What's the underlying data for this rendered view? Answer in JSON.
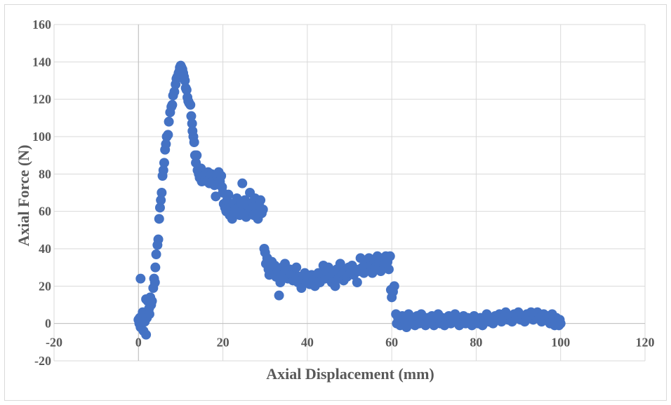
{
  "chart_data": {
    "type": "scatter",
    "xlabel": "Axial Displacement (mm)",
    "ylabel": "Axial Force (N)",
    "xlim": [
      -20,
      120
    ],
    "ylim": [
      -20,
      160
    ],
    "x_ticks": [
      -20,
      0,
      20,
      40,
      60,
      80,
      100,
      120
    ],
    "y_ticks": [
      -20,
      0,
      20,
      40,
      60,
      80,
      100,
      120,
      140,
      160
    ],
    "x_tick_labels": [
      "-20",
      "0",
      "20",
      "40",
      "60",
      "80",
      "100",
      "120"
    ],
    "y_tick_labels": [
      "-20",
      "0",
      "20",
      "40",
      "60",
      "80",
      "100",
      "120",
      "140",
      "160"
    ],
    "grid": true,
    "marker_color": "#4472c4",
    "series": [
      {
        "points": [
          [
            0.0,
            2
          ],
          [
            0.2,
            0
          ],
          [
            0.3,
            3
          ],
          [
            0.5,
            24
          ],
          [
            0.5,
            -2
          ],
          [
            0.8,
            4
          ],
          [
            1.0,
            6
          ],
          [
            1.2,
            -4
          ],
          [
            1.5,
            1
          ],
          [
            1.8,
            -6
          ],
          [
            1.8,
            13
          ],
          [
            2.0,
            3
          ],
          [
            2.2,
            12
          ],
          [
            2.5,
            8
          ],
          [
            2.6,
            5
          ],
          [
            2.8,
            14
          ],
          [
            3.0,
            10
          ],
          [
            3.2,
            12
          ],
          [
            3.5,
            19
          ],
          [
            3.7,
            24
          ],
          [
            3.9,
            22
          ],
          [
            4.0,
            30
          ],
          [
            4.2,
            37
          ],
          [
            4.5,
            42
          ],
          [
            4.7,
            45
          ],
          [
            4.9,
            56
          ],
          [
            5.1,
            62
          ],
          [
            5.3,
            66
          ],
          [
            5.5,
            70
          ],
          [
            5.7,
            79
          ],
          [
            5.9,
            82
          ],
          [
            6.1,
            86
          ],
          [
            6.3,
            93
          ],
          [
            6.5,
            96
          ],
          [
            6.7,
            100
          ],
          [
            7.0,
            101
          ],
          [
            7.2,
            108
          ],
          [
            7.5,
            113
          ],
          [
            7.8,
            116
          ],
          [
            8.0,
            117
          ],
          [
            8.2,
            122
          ],
          [
            8.5,
            124
          ],
          [
            8.8,
            128
          ],
          [
            9.0,
            131
          ],
          [
            9.2,
            132
          ],
          [
            9.5,
            134
          ],
          [
            9.7,
            135
          ],
          [
            9.8,
            137
          ],
          [
            10.0,
            138
          ],
          [
            10.2,
            137
          ],
          [
            10.4,
            136
          ],
          [
            10.6,
            134
          ],
          [
            10.8,
            132
          ],
          [
            11.0,
            130
          ],
          [
            11.2,
            126
          ],
          [
            11.4,
            125
          ],
          [
            11.6,
            121
          ],
          [
            11.8,
            119
          ],
          [
            12.0,
            118
          ],
          [
            12.3,
            117
          ],
          [
            12.5,
            111
          ],
          [
            12.7,
            107
          ],
          [
            12.8,
            103
          ],
          [
            13.0,
            100
          ],
          [
            13.2,
            97
          ],
          [
            13.4,
            90
          ],
          [
            13.6,
            86
          ],
          [
            13.8,
            90
          ],
          [
            14.0,
            82
          ],
          [
            14.3,
            80
          ],
          [
            14.5,
            78
          ],
          [
            14.8,
            83
          ],
          [
            15.0,
            76
          ],
          [
            15.3,
            81
          ],
          [
            15.5,
            79
          ],
          [
            15.8,
            77
          ],
          [
            16.0,
            80
          ],
          [
            16.3,
            76
          ],
          [
            16.5,
            81
          ],
          [
            16.8,
            75
          ],
          [
            17.0,
            78
          ],
          [
            17.3,
            80
          ],
          [
            17.6,
            76
          ],
          [
            18.0,
            74
          ],
          [
            18.3,
            68
          ],
          [
            18.6,
            79
          ],
          [
            19.0,
            81
          ],
          [
            19.3,
            76
          ],
          [
            19.6,
            79
          ],
          [
            19.8,
            73
          ],
          [
            20.0,
            70
          ],
          [
            20.2,
            64
          ],
          [
            20.5,
            62
          ],
          [
            20.8,
            60
          ],
          [
            21.0,
            66
          ],
          [
            21.3,
            69
          ],
          [
            21.6,
            58
          ],
          [
            21.9,
            62
          ],
          [
            22.2,
            56
          ],
          [
            22.5,
            64
          ],
          [
            22.8,
            59
          ],
          [
            23.0,
            61
          ],
          [
            23.3,
            67
          ],
          [
            23.6,
            62
          ],
          [
            24.0,
            58
          ],
          [
            24.3,
            64
          ],
          [
            24.6,
            75
          ],
          [
            24.9,
            60
          ],
          [
            25.2,
            66
          ],
          [
            25.5,
            57
          ],
          [
            25.8,
            63
          ],
          [
            26.1,
            59
          ],
          [
            26.4,
            70
          ],
          [
            26.7,
            61
          ],
          [
            27.0,
            65
          ],
          [
            27.3,
            58
          ],
          [
            27.6,
            67
          ],
          [
            28.0,
            60
          ],
          [
            28.3,
            56
          ],
          [
            28.6,
            63
          ],
          [
            28.9,
            66
          ],
          [
            29.2,
            59
          ],
          [
            29.5,
            61
          ],
          [
            29.8,
            40
          ],
          [
            30.0,
            38
          ],
          [
            30.2,
            32
          ],
          [
            30.5,
            35
          ],
          [
            30.8,
            29
          ],
          [
            31.0,
            26
          ],
          [
            31.3,
            30
          ],
          [
            31.6,
            33
          ],
          [
            32.0,
            27
          ],
          [
            32.3,
            31
          ],
          [
            32.6,
            25
          ],
          [
            33.0,
            28
          ],
          [
            33.3,
            15
          ],
          [
            33.6,
            22
          ],
          [
            34.0,
            30
          ],
          [
            34.3,
            26
          ],
          [
            34.7,
            32
          ],
          [
            35.0,
            28
          ],
          [
            35.4,
            24
          ],
          [
            35.8,
            29
          ],
          [
            36.2,
            26
          ],
          [
            36.6,
            23
          ],
          [
            37.0,
            27
          ],
          [
            37.4,
            30
          ],
          [
            37.8,
            22
          ],
          [
            38.2,
            25
          ],
          [
            38.6,
            19
          ],
          [
            39.0,
            24
          ],
          [
            39.4,
            27
          ],
          [
            39.8,
            22
          ],
          [
            40.2,
            25
          ],
          [
            40.6,
            21
          ],
          [
            41.0,
            26
          ],
          [
            41.4,
            23
          ],
          [
            41.8,
            20
          ],
          [
            42.2,
            24
          ],
          [
            42.6,
            27
          ],
          [
            43.0,
            22
          ],
          [
            43.4,
            26
          ],
          [
            43.8,
            31
          ],
          [
            44.2,
            24
          ],
          [
            44.6,
            28
          ],
          [
            45.0,
            30
          ],
          [
            45.4,
            25
          ],
          [
            45.8,
            22
          ],
          [
            46.2,
            27
          ],
          [
            46.6,
            20
          ],
          [
            47.0,
            29
          ],
          [
            47.4,
            24
          ],
          [
            47.8,
            32
          ],
          [
            48.2,
            26
          ],
          [
            48.6,
            23
          ],
          [
            49.0,
            28
          ],
          [
            49.4,
            25
          ],
          [
            49.8,
            30
          ],
          [
            50.2,
            27
          ],
          [
            50.6,
            31
          ],
          [
            51.0,
            26
          ],
          [
            51.4,
            29
          ],
          [
            51.8,
            22
          ],
          [
            52.2,
            28
          ],
          [
            52.6,
            35
          ],
          [
            53.0,
            30
          ],
          [
            53.4,
            27
          ],
          [
            53.8,
            33
          ],
          [
            54.2,
            29
          ],
          [
            54.6,
            35
          ],
          [
            55.0,
            31
          ],
          [
            55.4,
            27
          ],
          [
            55.8,
            34
          ],
          [
            56.2,
            30
          ],
          [
            56.6,
            36
          ],
          [
            57.0,
            32
          ],
          [
            57.4,
            28
          ],
          [
            57.8,
            35
          ],
          [
            58.2,
            31
          ],
          [
            58.6,
            36
          ],
          [
            59.0,
            33
          ],
          [
            59.3,
            29
          ],
          [
            59.6,
            36
          ],
          [
            59.8,
            18
          ],
          [
            60.0,
            14
          ],
          [
            60.3,
            17
          ],
          [
            60.6,
            20
          ],
          [
            61.0,
            5
          ],
          [
            61.2,
            0
          ],
          [
            61.5,
            3
          ],
          [
            62.0,
            -1
          ],
          [
            62.5,
            4
          ],
          [
            63.0,
            2
          ],
          [
            63.5,
            -2
          ],
          [
            64.0,
            5
          ],
          [
            64.5,
            1
          ],
          [
            65.0,
            3
          ],
          [
            65.5,
            -1
          ],
          [
            66.0,
            4
          ],
          [
            66.5,
            0
          ],
          [
            67.0,
            5
          ],
          [
            67.5,
            2
          ],
          [
            68.0,
            -1
          ],
          [
            68.5,
            3
          ],
          [
            69.0,
            1
          ],
          [
            69.5,
            4
          ],
          [
            70.0,
            -1
          ],
          [
            70.5,
            2
          ],
          [
            71.0,
            5
          ],
          [
            71.5,
            0
          ],
          [
            72.0,
            3
          ],
          [
            72.5,
            -1
          ],
          [
            73.0,
            2
          ],
          [
            73.5,
            4
          ],
          [
            74.0,
            0
          ],
          [
            74.5,
            3
          ],
          [
            75.0,
            5
          ],
          [
            75.5,
            1
          ],
          [
            76.0,
            -1
          ],
          [
            76.5,
            2
          ],
          [
            77.0,
            4
          ],
          [
            77.5,
            0
          ],
          [
            78.0,
            3
          ],
          [
            78.5,
            1
          ],
          [
            79.0,
            -1
          ],
          [
            79.5,
            4
          ],
          [
            80.0,
            2
          ],
          [
            80.5,
            0
          ],
          [
            81.0,
            3
          ],
          [
            81.5,
            -1
          ],
          [
            82.0,
            2
          ],
          [
            82.5,
            5
          ],
          [
            83.0,
            1
          ],
          [
            83.5,
            3
          ],
          [
            84.0,
            0
          ],
          [
            84.5,
            4
          ],
          [
            85.0,
            2
          ],
          [
            85.5,
            5
          ],
          [
            86.0,
            1
          ],
          [
            86.5,
            3
          ],
          [
            87.0,
            6
          ],
          [
            87.5,
            2
          ],
          [
            88.0,
            4
          ],
          [
            88.5,
            1
          ],
          [
            89.0,
            5
          ],
          [
            89.5,
            3
          ],
          [
            90.0,
            6
          ],
          [
            90.5,
            2
          ],
          [
            91.0,
            4
          ],
          [
            91.5,
            1
          ],
          [
            92.0,
            5
          ],
          [
            92.5,
            3
          ],
          [
            93.0,
            6
          ],
          [
            93.5,
            2
          ],
          [
            94.0,
            4
          ],
          [
            94.5,
            6
          ],
          [
            95.0,
            3
          ],
          [
            95.5,
            1
          ],
          [
            96.0,
            5
          ],
          [
            96.5,
            2
          ],
          [
            97.0,
            4
          ],
          [
            97.5,
            0
          ],
          [
            98.0,
            5
          ],
          [
            98.3,
            2
          ],
          [
            98.6,
            -1
          ],
          [
            99.0,
            3
          ],
          [
            99.3,
            1
          ],
          [
            99.6,
            -1
          ],
          [
            99.8,
            2
          ],
          [
            100.0,
            0
          ]
        ]
      }
    ]
  }
}
